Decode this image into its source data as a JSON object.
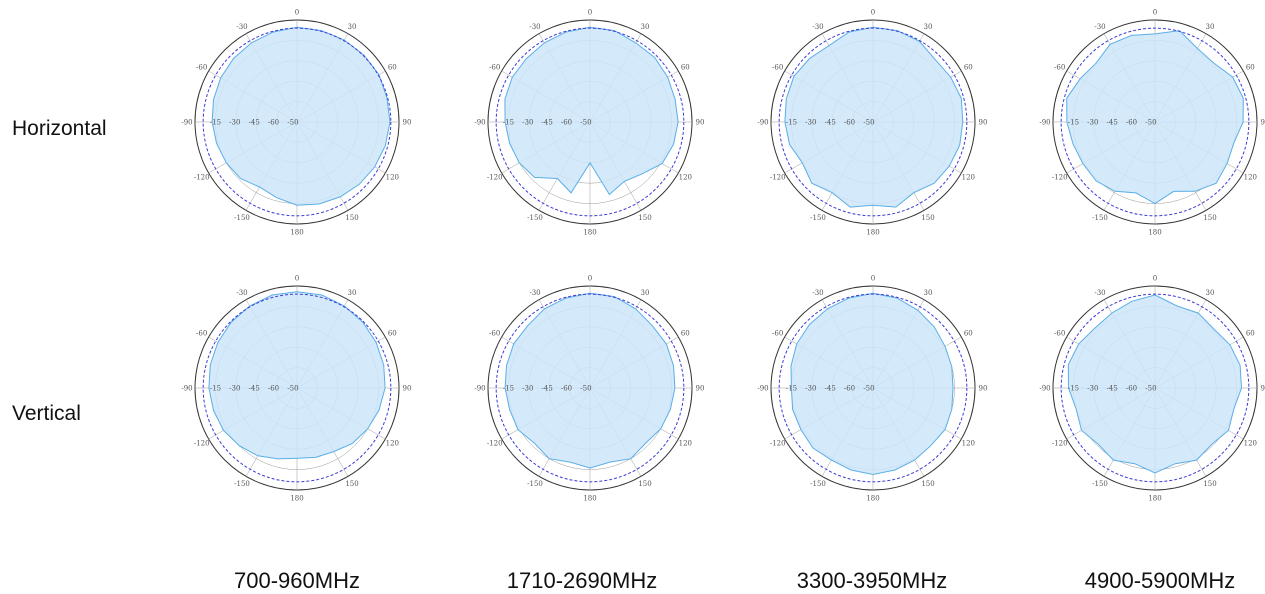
{
  "row_labels": [
    "Horizontal",
    "Vertical"
  ],
  "column_labels": [
    "700-960MHz",
    "1710-2690MHz",
    "3300-3950MHz",
    "4900-5900MHz"
  ],
  "colors": {
    "fill": "#cde6fa",
    "stroke": "#5aaee6",
    "reference": "#3a3ad6",
    "grid": "#9a9a9a",
    "frame": "#333333"
  },
  "chart_data": {
    "type": "polar-area",
    "angle_tick_labels": [
      "0",
      "30",
      "60",
      "90",
      "120",
      "150",
      "180",
      "-150",
      "-120",
      "-90",
      "-60",
      "-30"
    ],
    "radial_tick_labels": [
      "-15",
      "-30",
      "-45",
      "-60",
      "-50"
    ],
    "radial_range": [
      -60,
      0
    ],
    "grid": true,
    "patterns": [
      {
        "band": "700-960MHz",
        "polarization": "Horizontal",
        "gain_db": [
          -2,
          -2,
          -2,
          -2,
          -2,
          -3,
          -3,
          -4,
          -5,
          -6,
          -7,
          -8,
          -9,
          -12,
          -14,
          -11,
          -10,
          -9,
          -8,
          -7,
          -6,
          -5,
          -4,
          -3
        ]
      },
      {
        "band": "1710-2690MHz",
        "polarization": "Horizontal",
        "gain_db": [
          -2,
          -2,
          -4,
          -4,
          -5,
          -6,
          -6,
          -7,
          -9,
          -15,
          -18,
          -14,
          -35,
          -15,
          -20,
          -12,
          -10,
          -9,
          -8,
          -6,
          -5,
          -5,
          -4,
          -3
        ]
      },
      {
        "band": "3300-3950MHz",
        "polarization": "Horizontal",
        "gain_db": [
          -2,
          -2,
          -3,
          -6,
          -5,
          -4,
          -5,
          -5,
          -6,
          -7,
          -10,
          -6,
          -9,
          -6,
          -10,
          -7,
          -10,
          -7,
          -6,
          -5,
          -4,
          -5,
          -6,
          -3
        ]
      },
      {
        "band": "4900-5900MHz",
        "polarization": "Horizontal",
        "gain_db": [
          -6,
          -2,
          -8,
          -9,
          -5,
          -4,
          -6,
          -10,
          -9,
          -7,
          -11,
          -16,
          -10,
          -15,
          -11,
          -9,
          -9,
          -8,
          -6,
          -4,
          -7,
          -9,
          -5,
          -5
        ]
      },
      {
        "band": "700-960MHz",
        "polarization": "Vertical",
        "gain_db": [
          -1,
          -1,
          -2,
          -3,
          -4,
          -5,
          -6,
          -8,
          -10,
          -12,
          -15,
          -16,
          -17,
          -15,
          -12,
          -10,
          -8,
          -7,
          -6,
          -5,
          -4,
          -3,
          -2,
          -1
        ]
      },
      {
        "band": "1710-2690MHz",
        "polarization": "Vertical",
        "gain_db": [
          -2,
          -2,
          -4,
          -6,
          -6,
          -7,
          -8,
          -9,
          -10,
          -12,
          -10,
          -13,
          -11,
          -13,
          -10,
          -12,
          -9,
          -9,
          -8,
          -7,
          -6,
          -6,
          -4,
          -3
        ]
      },
      {
        "band": "3300-3950MHz",
        "polarization": "Vertical",
        "gain_db": [
          -2,
          -3,
          -5,
          -7,
          -9,
          -10,
          -11,
          -10,
          -9,
          -10,
          -9,
          -8,
          -7,
          -8,
          -9,
          -8,
          -9,
          -9,
          -10,
          -8,
          -6,
          -5,
          -4,
          -3
        ]
      },
      {
        "band": "4900-5900MHz",
        "polarization": "Vertical",
        "gain_db": [
          -3,
          -8,
          -7,
          -9,
          -7,
          -6,
          -7,
          -10,
          -8,
          -11,
          -9,
          -12,
          -8,
          -12,
          -9,
          -11,
          -8,
          -10,
          -7,
          -5,
          -6,
          -8,
          -7,
          -5
        ]
      }
    ]
  }
}
